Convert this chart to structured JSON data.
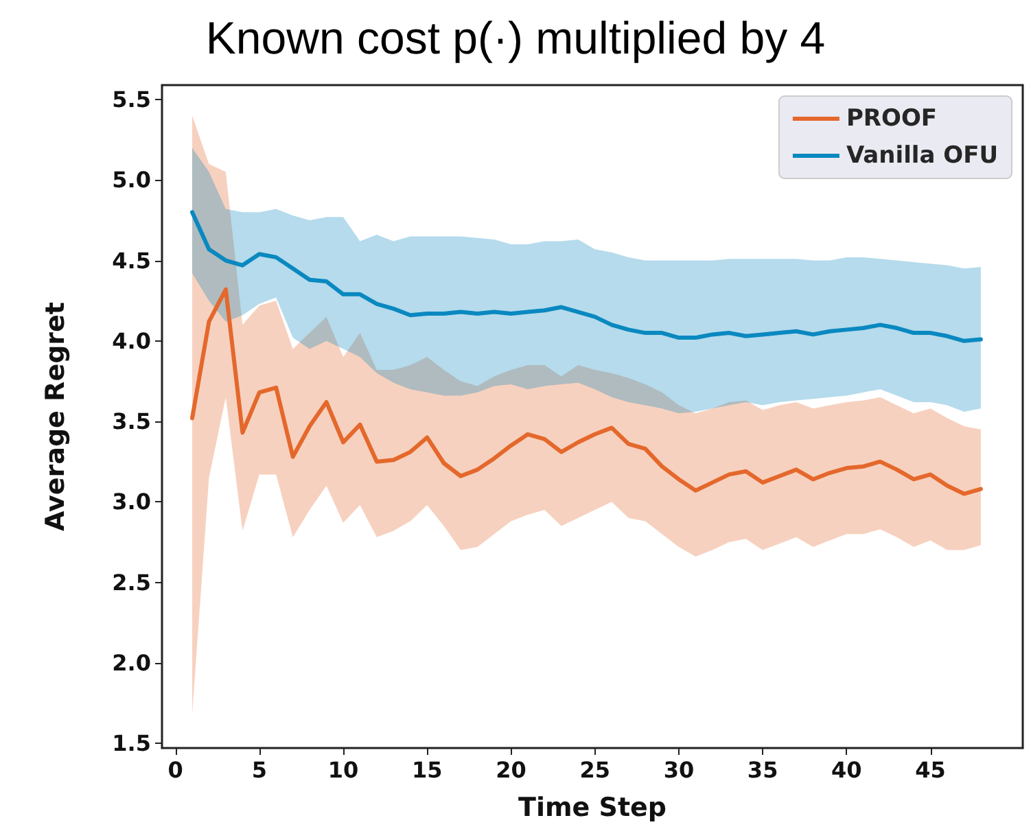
{
  "chart_data": {
    "type": "line",
    "title": "Known cost p(·) multiplied by 4",
    "xlabel": "Time Step",
    "ylabel": "Average Regret",
    "x": [
      1,
      2,
      3,
      4,
      5,
      6,
      7,
      8,
      9,
      10,
      11,
      12,
      13,
      14,
      15,
      16,
      17,
      18,
      19,
      20,
      21,
      22,
      23,
      24,
      25,
      26,
      27,
      28,
      29,
      30,
      31,
      32,
      33,
      34,
      35,
      36,
      37,
      38,
      39,
      40,
      41,
      42,
      43,
      44,
      45,
      46,
      47,
      48
    ],
    "xlim": [
      -0.8,
      50.5
    ],
    "xticks": [
      0,
      5,
      10,
      15,
      20,
      25,
      30,
      35,
      40,
      45
    ],
    "ylim": [
      1.47,
      5.59
    ],
    "yticks": [
      1.5,
      {
        "value": 2,
        "label": "2.0"
      },
      2.5,
      {
        "value": 3,
        "label": "3.0"
      },
      3.5,
      {
        "value": 4,
        "label": "4.0"
      },
      4.5,
      {
        "value": 5,
        "label": "5.0"
      },
      5.5
    ],
    "series": [
      {
        "name": "PROOF",
        "color": "#e4682c",
        "values": [
          3.52,
          4.12,
          4.32,
          3.43,
          3.68,
          3.71,
          3.28,
          3.47,
          3.62,
          3.37,
          3.48,
          3.25,
          3.26,
          3.31,
          3.4,
          3.24,
          3.16,
          3.2,
          3.27,
          3.35,
          3.42,
          3.39,
          3.31,
          3.37,
          3.42,
          3.46,
          3.36,
          3.33,
          3.22,
          3.14,
          3.07,
          3.12,
          3.17,
          3.19,
          3.12,
          3.16,
          3.2,
          3.14,
          3.18,
          3.21,
          3.22,
          3.25,
          3.2,
          3.14,
          3.17,
          3.1,
          3.05,
          3.08
        ],
        "upper": [
          5.4,
          5.1,
          5.05,
          4.1,
          4.22,
          4.25,
          3.95,
          4.05,
          4.15,
          3.9,
          4.05,
          3.82,
          3.82,
          3.85,
          3.9,
          3.82,
          3.75,
          3.72,
          3.78,
          3.82,
          3.85,
          3.85,
          3.78,
          3.85,
          3.82,
          3.8,
          3.77,
          3.73,
          3.68,
          3.6,
          3.55,
          3.58,
          3.62,
          3.63,
          3.57,
          3.6,
          3.62,
          3.58,
          3.6,
          3.62,
          3.63,
          3.65,
          3.6,
          3.55,
          3.58,
          3.52,
          3.47,
          3.45
        ],
        "lower": [
          1.68,
          3.15,
          3.65,
          2.82,
          3.17,
          3.17,
          2.78,
          2.95,
          3.1,
          2.87,
          2.98,
          2.78,
          2.82,
          2.88,
          2.98,
          2.85,
          2.7,
          2.72,
          2.8,
          2.88,
          2.92,
          2.95,
          2.85,
          2.9,
          2.95,
          3.0,
          2.9,
          2.88,
          2.8,
          2.72,
          2.66,
          2.7,
          2.75,
          2.77,
          2.7,
          2.74,
          2.78,
          2.72,
          2.76,
          2.8,
          2.8,
          2.83,
          2.78,
          2.72,
          2.76,
          2.7,
          2.7,
          2.73
        ]
      },
      {
        "name": "Vanilla OFU",
        "color": "#0a88c0",
        "values": [
          4.8,
          4.57,
          4.5,
          4.47,
          4.54,
          4.52,
          4.45,
          4.38,
          4.37,
          4.29,
          4.29,
          4.23,
          4.2,
          4.16,
          4.17,
          4.17,
          4.18,
          4.17,
          4.18,
          4.17,
          4.18,
          4.19,
          4.21,
          4.18,
          4.15,
          4.1,
          4.07,
          4.05,
          4.05,
          4.02,
          4.02,
          4.04,
          4.05,
          4.03,
          4.04,
          4.05,
          4.06,
          4.04,
          4.06,
          4.07,
          4.08,
          4.1,
          4.08,
          4.05,
          4.05,
          4.03,
          4.0,
          4.01
        ],
        "upper": [
          5.2,
          5.05,
          4.82,
          4.8,
          4.8,
          4.82,
          4.78,
          4.75,
          4.77,
          4.77,
          4.62,
          4.66,
          4.62,
          4.65,
          4.65,
          4.65,
          4.65,
          4.64,
          4.63,
          4.6,
          4.6,
          4.62,
          4.62,
          4.63,
          4.57,
          4.55,
          4.52,
          4.5,
          4.5,
          4.5,
          4.5,
          4.5,
          4.51,
          4.51,
          4.51,
          4.51,
          4.51,
          4.5,
          4.5,
          4.52,
          4.52,
          4.51,
          4.5,
          4.49,
          4.48,
          4.47,
          4.45,
          4.46
        ],
        "lower": [
          4.42,
          4.25,
          4.12,
          4.16,
          4.23,
          4.27,
          4.02,
          3.95,
          4.0,
          3.95,
          3.9,
          3.8,
          3.74,
          3.7,
          3.68,
          3.66,
          3.66,
          3.68,
          3.72,
          3.73,
          3.7,
          3.72,
          3.73,
          3.74,
          3.7,
          3.65,
          3.62,
          3.6,
          3.58,
          3.55,
          3.56,
          3.58,
          3.6,
          3.62,
          3.6,
          3.62,
          3.63,
          3.64,
          3.65,
          3.66,
          3.68,
          3.7,
          3.66,
          3.62,
          3.62,
          3.6,
          3.56,
          3.58
        ]
      }
    ],
    "legend": "top right",
    "grid": false,
    "marker": "none",
    "line_style": "solid"
  }
}
